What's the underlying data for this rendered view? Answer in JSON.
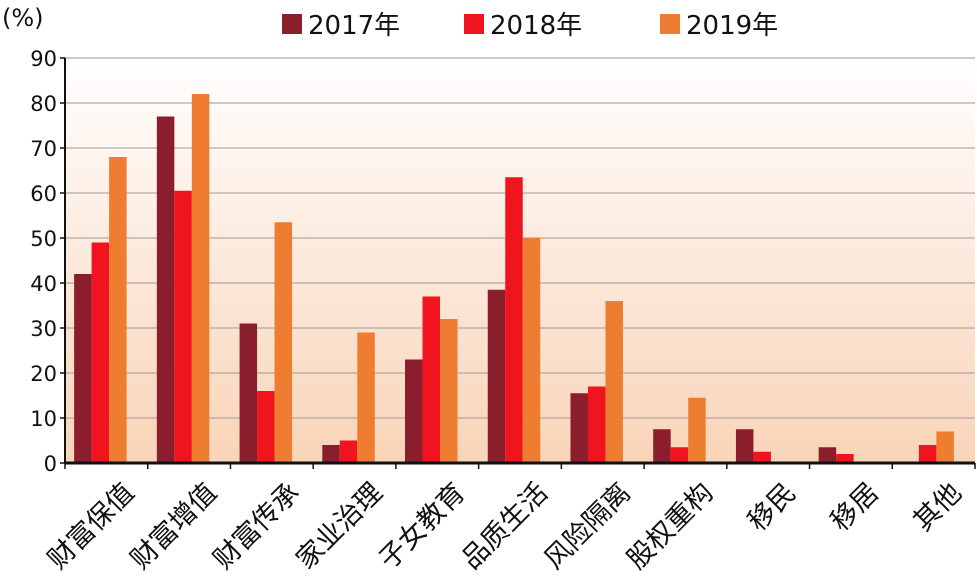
{
  "chart_data": {
    "type": "bar",
    "ylabel": "(%)",
    "ylim": [
      0,
      90
    ],
    "yticks": [
      "0",
      "10",
      "20",
      "30",
      "40",
      "50",
      "60",
      "70",
      "80",
      "90"
    ],
    "grid": true,
    "legend_placement": "top",
    "categories": [
      "财富保值",
      "财富增值",
      "财富传承",
      "家业治理",
      "子女教育",
      "品质生活",
      "风险隔离",
      "股权重构",
      "移民",
      "移居",
      "其他"
    ],
    "series": [
      {
        "name": "2017年",
        "color": "#8b1e2d",
        "values": [
          42,
          77,
          31,
          4,
          23,
          38.5,
          15.5,
          7.5,
          7.5,
          3.5,
          0
        ]
      },
      {
        "name": "2018年",
        "color": "#f0141e",
        "values": [
          49,
          60.5,
          16,
          5,
          37,
          63.5,
          17,
          3.5,
          2.5,
          2,
          4
        ]
      },
      {
        "name": "2019年",
        "color": "#ee7d31",
        "values": [
          68,
          82,
          53.5,
          29,
          32,
          50,
          36,
          14.5,
          0,
          0,
          7
        ]
      }
    ],
    "background_gradient": [
      "#ffffff",
      "#f9d4b8"
    ]
  }
}
